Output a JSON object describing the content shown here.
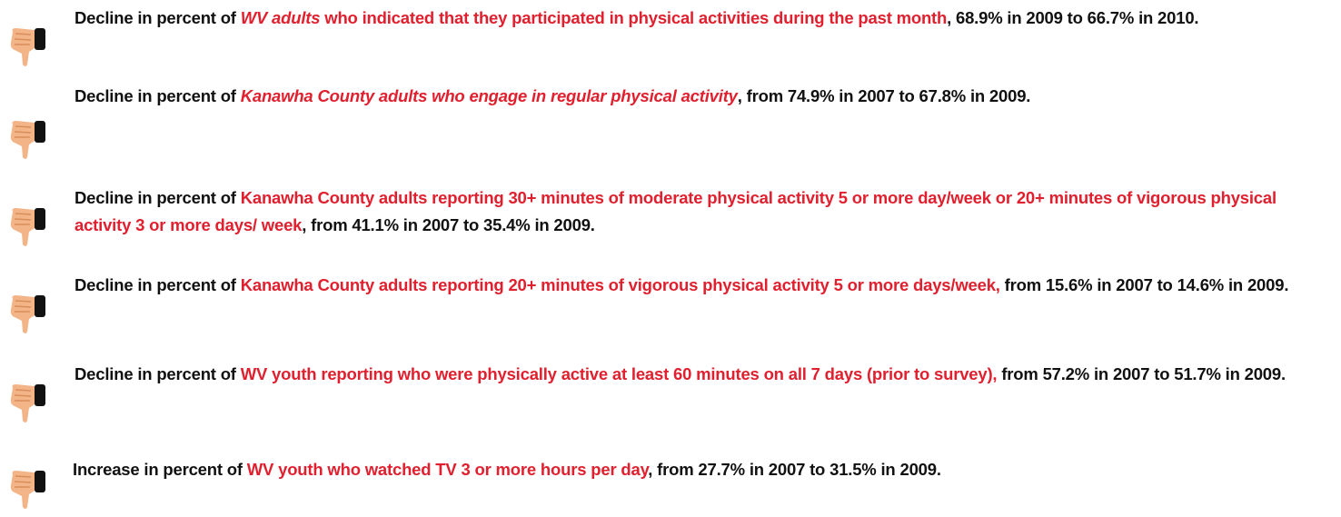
{
  "items": [
    {
      "segments": [
        {
          "text": "Decline in percent of ",
          "style": "plain"
        },
        {
          "text": "WV adults",
          "style": "red-italic"
        },
        {
          "text": " who indicated that they participated in physical activities during the past month",
          "style": "red"
        },
        {
          "text": ", 68.9% in 2009 to 66.7% in 2010.",
          "style": "plain"
        }
      ]
    },
    {
      "segments": [
        {
          "text": "Decline in percent of ",
          "style": "plain"
        },
        {
          "text": "Kanawha County adults who engage in regular physical activity",
          "style": "red-italic"
        },
        {
          "text": ", from 74.9% in 2007 to 67.8% in 2009.",
          "style": "plain"
        }
      ]
    },
    {
      "segments": [
        {
          "text": "Decline in percent of ",
          "style": "plain"
        },
        {
          "text": "Kanawha County adults reporting 30+ minutes of moderate physical activity 5 or more day/week or 20+ minutes of vigorous physical activity 3 or more days/ week",
          "style": "red"
        },
        {
          "text": ", from 41.1% in 2007 to 35.4% in 2009.",
          "style": "plain"
        }
      ]
    },
    {
      "segments": [
        {
          "text": "Decline in percent of ",
          "style": "plain"
        },
        {
          "text": "Kanawha County adults reporting 20+ minutes of vigorous physical activity 5 or more days/week,",
          "style": "red"
        },
        {
          "text": " from 15.6% in 2007 to 14.6% in 2009.",
          "style": "plain"
        }
      ]
    },
    {
      "segments": [
        {
          "text": "Decline in percent of ",
          "style": "plain"
        },
        {
          "text": "WV youth reporting who were physically active at least 60 minutes on all 7 days (prior to survey),",
          "style": "red"
        },
        {
          "text": " from 57.2% in 2007 to 51.7% in 2009.",
          "style": "plain"
        }
      ]
    },
    {
      "segments": [
        {
          "text": "Increase in percent of ",
          "style": "plain"
        },
        {
          "text": "WV youth who watched TV 3 or more hours per day",
          "style": "red"
        },
        {
          "text": ", from 27.7% in 2007 to 31.5% in 2009.",
          "style": "plain"
        }
      ]
    }
  ]
}
